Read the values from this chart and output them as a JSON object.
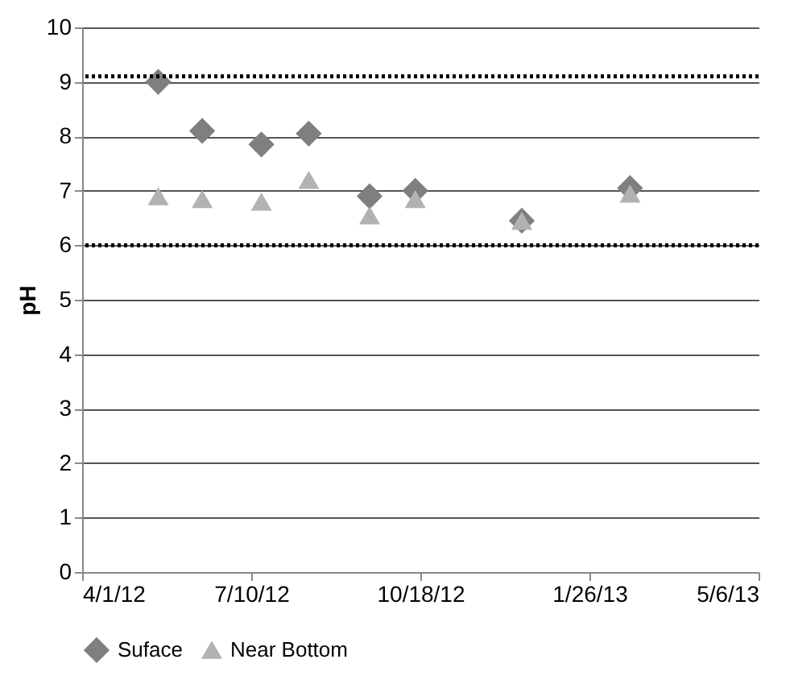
{
  "chart_data": {
    "type": "scatter",
    "ylabel": "pH",
    "x": [
      "2012-05-16",
      "2012-06-11",
      "2012-07-16",
      "2012-08-13",
      "2012-09-18",
      "2012-10-15",
      "2012-12-17",
      "2013-02-19"
    ],
    "series": [
      {
        "name": "Suface",
        "color": "#7f7f7f",
        "marker": "diamond",
        "values": [
          9.0,
          8.1,
          7.85,
          8.05,
          6.9,
          7.0,
          6.45,
          7.05
        ]
      },
      {
        "name": "Near Bottom",
        "color": "#b2b2b2",
        "marker": "triangle",
        "values": [
          6.9,
          6.85,
          6.8,
          7.2,
          6.55,
          6.85,
          6.45,
          6.95
        ]
      }
    ],
    "xlim": [
      "2012-04-01",
      "2013-05-06"
    ],
    "xticks": [
      {
        "value": "2012-04-01",
        "label": "4/1/12"
      },
      {
        "value": "2012-07-10",
        "label": "7/10/12"
      },
      {
        "value": "2012-10-18",
        "label": "10/18/12"
      },
      {
        "value": "2013-01-26",
        "label": "1/26/13"
      },
      {
        "value": "2013-05-06",
        "label": "5/6/13"
      }
    ],
    "ylim": [
      0,
      10
    ],
    "yticks": [
      0,
      1,
      2,
      3,
      4,
      5,
      6,
      7,
      8,
      9,
      10
    ],
    "ref_lines": [
      {
        "axis": "y",
        "value": 9.1,
        "color": "#000000",
        "line_style": "dotted"
      },
      {
        "axis": "y",
        "value": 6,
        "color": "#000000",
        "line_style": "dotted"
      }
    ],
    "grid": "y",
    "legend": "bottom"
  }
}
